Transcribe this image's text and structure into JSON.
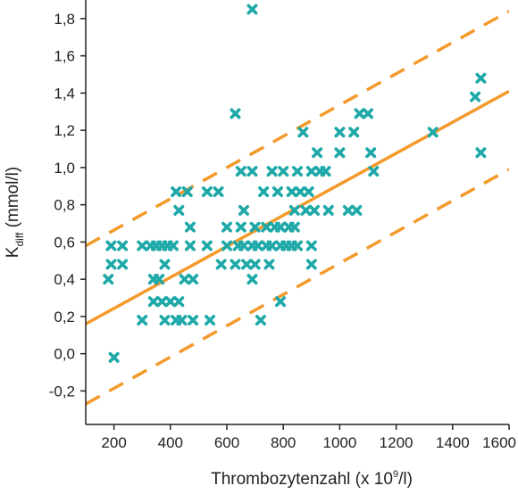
{
  "chart_data": {
    "type": "scatter",
    "xlabel_main": "Thrombozytenzahl (x 10",
    "xlabel_sup": "9",
    "xlabel_end": "/l)",
    "ylabel_main": "K",
    "ylabel_sub": "diff",
    "ylabel_end": " (mmol/l)",
    "xlim": [
      100,
      1600
    ],
    "ylim": [
      -0.38,
      1.9
    ],
    "x_ticks": [
      200,
      400,
      600,
      800,
      1000,
      1200,
      1400,
      1600
    ],
    "x_tick_labels": [
      "200",
      "400",
      "600",
      "800",
      "1000",
      "1200",
      "1400",
      "1600"
    ],
    "y_ticks": [
      -0.2,
      0.0,
      0.2,
      0.4,
      0.6,
      0.8,
      1.0,
      1.2,
      1.4,
      1.6,
      1.8
    ],
    "y_tick_labels": [
      "-0,2",
      "0,0",
      "0,2",
      "0,4",
      "0,6",
      "0,8",
      "1,0",
      "1,2",
      "1,4",
      "1,6",
      "1,8"
    ],
    "grid": false,
    "colors": {
      "points": "#1fa8a8",
      "regression": "#f39a2b",
      "axis": "#222222"
    },
    "points": [
      {
        "x": 180,
        "y": 0.4
      },
      {
        "x": 190,
        "y": 0.58
      },
      {
        "x": 190,
        "y": 0.48
      },
      {
        "x": 200,
        "y": -0.02
      },
      {
        "x": 230,
        "y": 0.58
      },
      {
        "x": 230,
        "y": 0.48
      },
      {
        "x": 300,
        "y": 0.58
      },
      {
        "x": 300,
        "y": 0.18
      },
      {
        "x": 330,
        "y": 0.58
      },
      {
        "x": 340,
        "y": 0.4
      },
      {
        "x": 340,
        "y": 0.28
      },
      {
        "x": 350,
        "y": 0.58
      },
      {
        "x": 360,
        "y": 0.4
      },
      {
        "x": 370,
        "y": 0.58
      },
      {
        "x": 370,
        "y": 0.28
      },
      {
        "x": 380,
        "y": 0.48
      },
      {
        "x": 380,
        "y": 0.18
      },
      {
        "x": 390,
        "y": 0.58
      },
      {
        "x": 400,
        "y": 0.28
      },
      {
        "x": 410,
        "y": 0.58
      },
      {
        "x": 420,
        "y": 0.87
      },
      {
        "x": 420,
        "y": 0.18
      },
      {
        "x": 430,
        "y": 0.77
      },
      {
        "x": 430,
        "y": 0.28
      },
      {
        "x": 440,
        "y": 0.18
      },
      {
        "x": 450,
        "y": 0.4
      },
      {
        "x": 460,
        "y": 0.87
      },
      {
        "x": 470,
        "y": 0.58
      },
      {
        "x": 470,
        "y": 0.68
      },
      {
        "x": 480,
        "y": 0.4
      },
      {
        "x": 480,
        "y": 0.18
      },
      {
        "x": 530,
        "y": 0.87
      },
      {
        "x": 530,
        "y": 0.58
      },
      {
        "x": 540,
        "y": 0.18
      },
      {
        "x": 570,
        "y": 0.87
      },
      {
        "x": 580,
        "y": 0.48
      },
      {
        "x": 600,
        "y": 0.68
      },
      {
        "x": 600,
        "y": 0.58
      },
      {
        "x": 630,
        "y": 0.48
      },
      {
        "x": 630,
        "y": 1.29
      },
      {
        "x": 640,
        "y": 0.58
      },
      {
        "x": 650,
        "y": 0.98
      },
      {
        "x": 650,
        "y": 0.68
      },
      {
        "x": 660,
        "y": 0.77
      },
      {
        "x": 660,
        "y": 0.58
      },
      {
        "x": 670,
        "y": 0.48
      },
      {
        "x": 690,
        "y": 0.98
      },
      {
        "x": 690,
        "y": 0.58
      },
      {
        "x": 690,
        "y": 0.4
      },
      {
        "x": 700,
        "y": 0.68
      },
      {
        "x": 700,
        "y": 0.48
      },
      {
        "x": 710,
        "y": 0.58
      },
      {
        "x": 690,
        "y": 1.85
      },
      {
        "x": 720,
        "y": 0.18
      },
      {
        "x": 730,
        "y": 0.87
      },
      {
        "x": 740,
        "y": 0.68
      },
      {
        "x": 740,
        "y": 0.58
      },
      {
        "x": 750,
        "y": 0.48
      },
      {
        "x": 760,
        "y": 0.98
      },
      {
        "x": 760,
        "y": 0.58
      },
      {
        "x": 770,
        "y": 0.68
      },
      {
        "x": 780,
        "y": 0.87
      },
      {
        "x": 790,
        "y": 0.68
      },
      {
        "x": 790,
        "y": 0.58
      },
      {
        "x": 790,
        "y": 0.28
      },
      {
        "x": 800,
        "y": 0.98
      },
      {
        "x": 810,
        "y": 0.58
      },
      {
        "x": 820,
        "y": 0.68
      },
      {
        "x": 830,
        "y": 0.87
      },
      {
        "x": 830,
        "y": 0.58
      },
      {
        "x": 840,
        "y": 0.77
      },
      {
        "x": 840,
        "y": 0.68
      },
      {
        "x": 850,
        "y": 0.98
      },
      {
        "x": 850,
        "y": 0.58
      },
      {
        "x": 860,
        "y": 0.87
      },
      {
        "x": 870,
        "y": 1.19
      },
      {
        "x": 880,
        "y": 0.77
      },
      {
        "x": 890,
        "y": 0.87
      },
      {
        "x": 900,
        "y": 0.98
      },
      {
        "x": 900,
        "y": 0.58
      },
      {
        "x": 900,
        "y": 0.48
      },
      {
        "x": 910,
        "y": 0.77
      },
      {
        "x": 920,
        "y": 1.08
      },
      {
        "x": 930,
        "y": 0.98
      },
      {
        "x": 950,
        "y": 0.98
      },
      {
        "x": 960,
        "y": 0.77
      },
      {
        "x": 1000,
        "y": 1.19
      },
      {
        "x": 1000,
        "y": 1.08
      },
      {
        "x": 1030,
        "y": 0.77
      },
      {
        "x": 1050,
        "y": 1.19
      },
      {
        "x": 1060,
        "y": 0.77
      },
      {
        "x": 1070,
        "y": 1.29
      },
      {
        "x": 1100,
        "y": 1.29
      },
      {
        "x": 1110,
        "y": 1.08
      },
      {
        "x": 1120,
        "y": 0.98
      },
      {
        "x": 1330,
        "y": 1.19
      },
      {
        "x": 1480,
        "y": 1.38
      },
      {
        "x": 1500,
        "y": 1.48
      },
      {
        "x": 1500,
        "y": 1.08
      }
    ],
    "regression": {
      "x": [
        100,
        1600
      ],
      "y": [
        0.16,
        1.41
      ]
    },
    "upper_bound": {
      "x": [
        100,
        1600
      ],
      "y": [
        0.58,
        1.84
      ]
    },
    "lower_bound": {
      "x": [
        100,
        1600
      ],
      "y": [
        -0.27,
        0.99
      ]
    }
  }
}
